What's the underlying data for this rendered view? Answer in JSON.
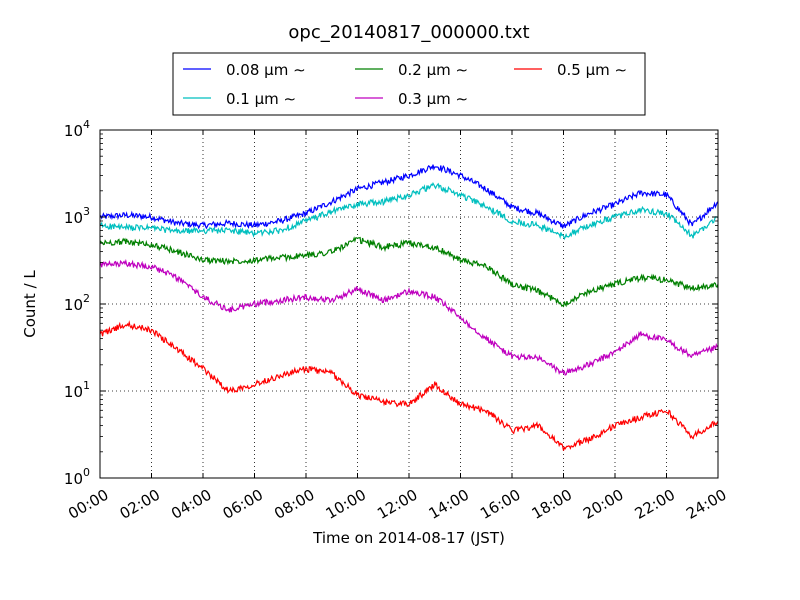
{
  "chart_data": {
    "type": "line",
    "title": "opc_20140817_000000.txt",
    "xlabel": "Time on 2014-08-17 (JST)",
    "ylabel": "Count / L",
    "yscale": "log",
    "xlim": [
      "00:00",
      "24:00"
    ],
    "ylim": [
      1,
      10000
    ],
    "grid": true,
    "legend_position": "top-center",
    "x_ticks": [
      "00:00",
      "02:00",
      "04:00",
      "06:00",
      "08:00",
      "10:00",
      "12:00",
      "14:00",
      "16:00",
      "18:00",
      "20:00",
      "22:00",
      "24:00"
    ],
    "y_ticks": [
      {
        "value": 1,
        "base": "10",
        "exp": "0"
      },
      {
        "value": 10,
        "base": "10",
        "exp": "1"
      },
      {
        "value": 100,
        "base": "10",
        "exp": "2"
      },
      {
        "value": 1000,
        "base": "10",
        "exp": "3"
      },
      {
        "value": 10000,
        "base": "10",
        "exp": "4"
      }
    ],
    "series": [
      {
        "name": "0.08 μm ∼",
        "color": "#0000ff",
        "x": [
          "00:00",
          "01:00",
          "02:00",
          "03:00",
          "04:00",
          "05:00",
          "06:00",
          "07:00",
          "08:00",
          "09:00",
          "10:00",
          "11:00",
          "12:00",
          "13:00",
          "14:00",
          "15:00",
          "16:00",
          "17:00",
          "18:00",
          "19:00",
          "20:00",
          "21:00",
          "22:00",
          "23:00",
          "24:00"
        ],
        "values": [
          1000,
          1050,
          1000,
          850,
          800,
          850,
          800,
          900,
          1100,
          1500,
          2100,
          2500,
          3000,
          3900,
          3000,
          2100,
          1300,
          1100,
          780,
          1100,
          1400,
          1900,
          1800,
          800,
          1500
        ]
      },
      {
        "name": "0.1 μm ∼",
        "color": "#00bfbf",
        "x": [
          "00:00",
          "01:00",
          "02:00",
          "03:00",
          "04:00",
          "05:00",
          "06:00",
          "07:00",
          "08:00",
          "09:00",
          "10:00",
          "11:00",
          "12:00",
          "13:00",
          "14:00",
          "15:00",
          "16:00",
          "17:00",
          "18:00",
          "19:00",
          "20:00",
          "21:00",
          "22:00",
          "23:00",
          "24:00"
        ],
        "values": [
          800,
          750,
          750,
          680,
          700,
          700,
          650,
          700,
          900,
          1150,
          1400,
          1500,
          1800,
          2300,
          1800,
          1300,
          900,
          800,
          600,
          800,
          1000,
          1200,
          1100,
          600,
          1000
        ]
      },
      {
        "name": "0.2 μm ∼",
        "color": "#008000",
        "x": [
          "00:00",
          "01:00",
          "02:00",
          "03:00",
          "04:00",
          "05:00",
          "06:00",
          "07:00",
          "08:00",
          "09:00",
          "10:00",
          "11:00",
          "12:00",
          "13:00",
          "14:00",
          "15:00",
          "16:00",
          "17:00",
          "18:00",
          "19:00",
          "20:00",
          "21:00",
          "22:00",
          "23:00",
          "24:00"
        ],
        "values": [
          500,
          520,
          480,
          400,
          320,
          310,
          320,
          340,
          360,
          400,
          550,
          450,
          500,
          450,
          320,
          270,
          170,
          140,
          100,
          140,
          170,
          200,
          190,
          150,
          170
        ]
      },
      {
        "name": "0.3 μm ∼",
        "color": "#bf00bf",
        "x": [
          "00:00",
          "01:00",
          "02:00",
          "03:00",
          "04:00",
          "05:00",
          "06:00",
          "07:00",
          "08:00",
          "09:00",
          "10:00",
          "11:00",
          "12:00",
          "13:00",
          "14:00",
          "15:00",
          "16:00",
          "17:00",
          "18:00",
          "19:00",
          "20:00",
          "21:00",
          "22:00",
          "23:00",
          "24:00"
        ],
        "values": [
          280,
          290,
          270,
          200,
          120,
          85,
          100,
          110,
          120,
          110,
          150,
          110,
          140,
          120,
          70,
          40,
          25,
          24,
          16,
          20,
          28,
          45,
          38,
          25,
          32
        ]
      },
      {
        "name": "0.5 μm ∼",
        "color": "#ff0000",
        "x": [
          "00:00",
          "01:00",
          "02:00",
          "03:00",
          "04:00",
          "05:00",
          "06:00",
          "07:00",
          "08:00",
          "09:00",
          "10:00",
          "11:00",
          "12:00",
          "13:00",
          "14:00",
          "15:00",
          "16:00",
          "17:00",
          "18:00",
          "19:00",
          "20:00",
          "21:00",
          "22:00",
          "23:00",
          "24:00"
        ],
        "values": [
          45,
          58,
          50,
          30,
          18,
          10,
          12,
          15,
          18,
          16,
          9,
          7.5,
          7,
          12,
          7,
          6,
          3.5,
          4,
          2.2,
          2.8,
          4,
          5,
          6,
          3,
          4.5
        ]
      }
    ]
  }
}
